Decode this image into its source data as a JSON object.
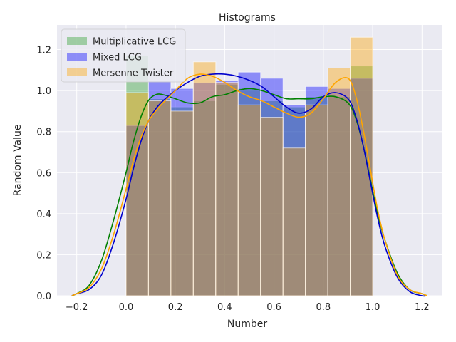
{
  "chart_data": {
    "type": "bar",
    "title": "Histograms",
    "xlabel": "Number",
    "ylabel": "Random Value",
    "xlim": [
      -0.28,
      1.28
    ],
    "ylim": [
      0,
      1.32
    ],
    "xticks": [
      "−0.2",
      "0.0",
      "0.2",
      "0.4",
      "0.6",
      "0.8",
      "1.0",
      "1.2"
    ],
    "xtick_values": [
      -0.2,
      0.0,
      0.2,
      0.4,
      0.6,
      0.8,
      1.0,
      1.2
    ],
    "yticks": [
      "0.0",
      "0.2",
      "0.4",
      "0.6",
      "0.8",
      "1.0",
      "1.2"
    ],
    "ytick_values": [
      0.0,
      0.2,
      0.4,
      0.6,
      0.8,
      1.0,
      1.2
    ],
    "grid": true,
    "legend_position": "top-left",
    "bin_edges": [
      0.0,
      0.0909,
      0.1818,
      0.2727,
      0.3636,
      0.4545,
      0.5455,
      0.6364,
      0.7273,
      0.8182,
      0.9091,
      1.0
    ],
    "series": [
      {
        "name": "Multiplicative LCG",
        "color": "#2ca02c",
        "kde_color": "#008000",
        "hist": [
          1.17,
          0.96,
          0.92,
          0.95,
          1.03,
          1.01,
          0.95,
          0.92,
          0.97,
          0.97,
          1.12
        ],
        "kde_x": [
          -0.22,
          -0.2,
          -0.15,
          -0.1,
          -0.05,
          0.0,
          0.03,
          0.06,
          0.09,
          0.12,
          0.15,
          0.2,
          0.25,
          0.3,
          0.35,
          0.4,
          0.45,
          0.5,
          0.55,
          0.6,
          0.65,
          0.7,
          0.75,
          0.8,
          0.85,
          0.9,
          0.93,
          0.96,
          0.99,
          1.02,
          1.05,
          1.1,
          1.15,
          1.2,
          1.22
        ],
        "kde_y": [
          0.0,
          0.01,
          0.05,
          0.17,
          0.37,
          0.6,
          0.75,
          0.87,
          0.95,
          0.98,
          0.98,
          0.96,
          0.94,
          0.94,
          0.97,
          0.98,
          1.0,
          1.01,
          1.0,
          0.98,
          0.96,
          0.96,
          0.96,
          0.97,
          0.97,
          0.94,
          0.87,
          0.74,
          0.57,
          0.4,
          0.27,
          0.11,
          0.03,
          0.01,
          0.0
        ]
      },
      {
        "name": "Mixed LCG",
        "color": "#0000ff",
        "kde_color": "#0000cc",
        "hist": [
          0.83,
          1.05,
          1.01,
          1.04,
          1.05,
          1.09,
          1.06,
          0.93,
          1.02,
          1.01,
          1.06
        ],
        "kde_x": [
          -0.22,
          -0.2,
          -0.15,
          -0.1,
          -0.05,
          0.0,
          0.03,
          0.06,
          0.09,
          0.12,
          0.15,
          0.2,
          0.25,
          0.3,
          0.35,
          0.4,
          0.45,
          0.5,
          0.55,
          0.6,
          0.65,
          0.7,
          0.75,
          0.8,
          0.85,
          0.9,
          0.93,
          0.96,
          0.99,
          1.02,
          1.05,
          1.1,
          1.15,
          1.2,
          1.22
        ],
        "kde_y": [
          0.0,
          0.01,
          0.03,
          0.1,
          0.26,
          0.47,
          0.62,
          0.75,
          0.85,
          0.91,
          0.95,
          1.0,
          1.04,
          1.07,
          1.08,
          1.08,
          1.07,
          1.05,
          1.02,
          0.97,
          0.92,
          0.89,
          0.91,
          0.97,
          0.99,
          0.96,
          0.88,
          0.74,
          0.56,
          0.38,
          0.24,
          0.09,
          0.02,
          0.0,
          0.0
        ]
      },
      {
        "name": "Mersenne Twister",
        "color": "#ffa500",
        "kde_color": "#ffa500",
        "hist": [
          0.99,
          0.95,
          0.9,
          1.14,
          1.04,
          0.93,
          0.87,
          0.72,
          0.93,
          1.11,
          1.26
        ],
        "kde_x": [
          -0.22,
          -0.2,
          -0.15,
          -0.1,
          -0.05,
          0.0,
          0.03,
          0.06,
          0.09,
          0.12,
          0.15,
          0.2,
          0.25,
          0.3,
          0.35,
          0.4,
          0.45,
          0.5,
          0.55,
          0.6,
          0.65,
          0.7,
          0.75,
          0.8,
          0.85,
          0.9,
          0.93,
          0.96,
          0.99,
          1.02,
          1.05,
          1.1,
          1.15,
          1.2,
          1.22
        ],
        "kde_y": [
          0.0,
          0.01,
          0.04,
          0.13,
          0.3,
          0.52,
          0.66,
          0.77,
          0.85,
          0.9,
          0.94,
          1.0,
          1.06,
          1.08,
          1.07,
          1.04,
          1.0,
          0.97,
          0.95,
          0.92,
          0.89,
          0.87,
          0.89,
          0.96,
          1.04,
          1.06,
          0.98,
          0.82,
          0.62,
          0.42,
          0.27,
          0.1,
          0.03,
          0.01,
          0.0
        ]
      }
    ]
  }
}
